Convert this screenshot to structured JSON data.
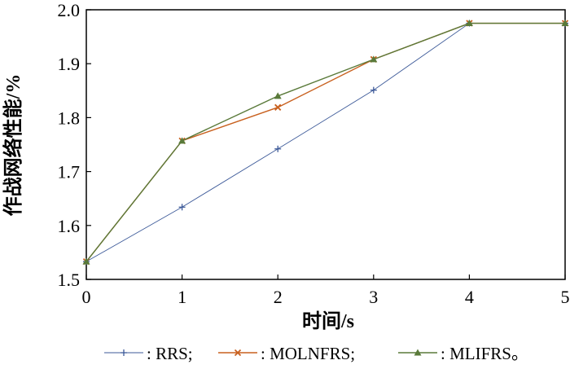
{
  "chart_data": {
    "type": "line",
    "title": "",
    "xlabel": "时间/s",
    "ylabel": "作战网络性能/%",
    "x": [
      0,
      1,
      2,
      3,
      4,
      5
    ],
    "xlim": [
      0,
      5
    ],
    "ylim": [
      1.5,
      2.0
    ],
    "x_ticks": [
      "0",
      "1",
      "2",
      "3",
      "4",
      "5"
    ],
    "y_ticks": [
      "1.5",
      "1.6",
      "1.7",
      "1.8",
      "1.9",
      "2.0"
    ],
    "grid": false,
    "legend_position": "bottom",
    "series": [
      {
        "name": ": RRS;",
        "color": "#3d5a99",
        "marker": "plus",
        "values": [
          1.533,
          1.634,
          1.742,
          1.851,
          1.975,
          1.975
        ]
      },
      {
        "name": ": MOLNFRS;",
        "color": "#c8601e",
        "marker": "x",
        "values": [
          1.533,
          1.757,
          1.819,
          1.908,
          1.975,
          1.975
        ]
      },
      {
        "name": ": MLIFRS。",
        "color": "#5a7a3a",
        "marker": "triangle",
        "values": [
          1.533,
          1.757,
          1.84,
          1.908,
          1.975,
          1.975
        ]
      }
    ]
  }
}
